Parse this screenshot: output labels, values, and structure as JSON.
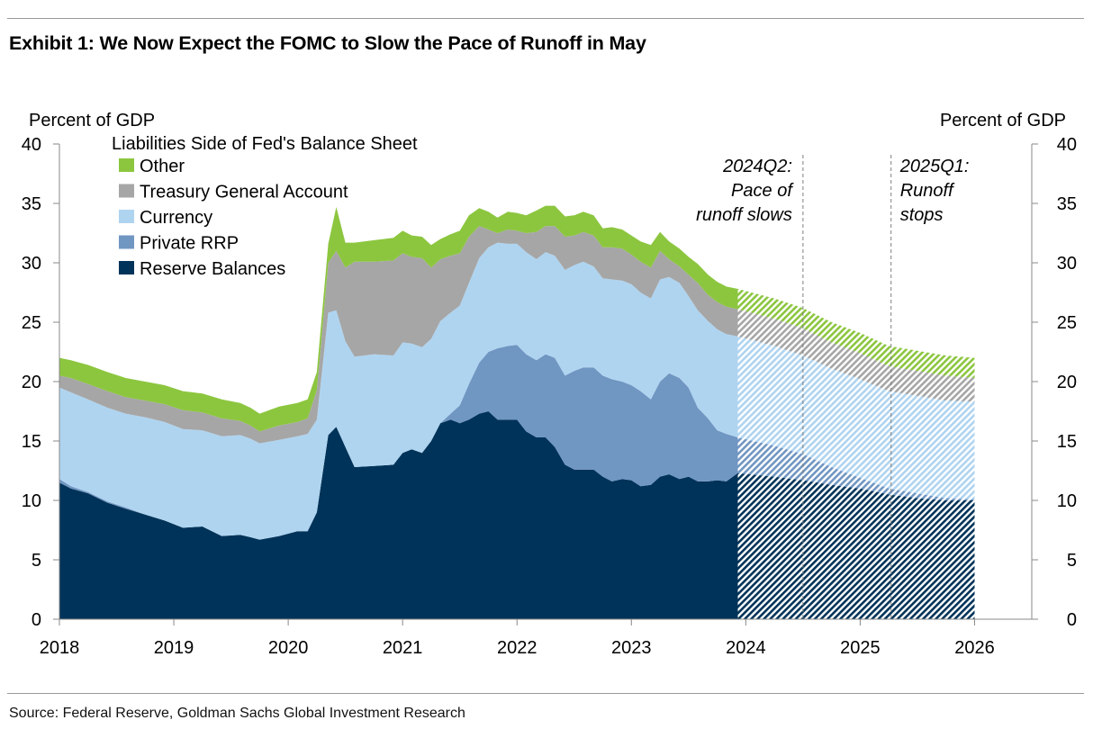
{
  "title": "Exhibit 1: We Now Expect the FOMC to Slow the Pace of Runoff in May",
  "source": "Source: Federal Reserve, Goldman Sachs Global Investment Research",
  "colors": {
    "reserve_balances": "#003359",
    "private_rrp": "#7096c2",
    "currency": "#afd4f0",
    "tga": "#a6a6a6",
    "other": "#8cc63f",
    "grid": "#888888"
  },
  "chart_data": {
    "type": "area",
    "stacked": true,
    "legend_title": "Liabilities Side of Fed's Balance Sheet",
    "legend_position": "top-left",
    "ylabel_left": "Percent of GDP",
    "ylabel_right": "Percent of GDP",
    "ylim": [
      0,
      40
    ],
    "yticks": [
      0,
      5,
      10,
      15,
      20,
      25,
      30,
      35,
      40
    ],
    "xlim": [
      2018,
      2026.5
    ],
    "xticks": [
      "2018",
      "2019",
      "2020",
      "2021",
      "2022",
      "2023",
      "2024",
      "2025",
      "2026"
    ],
    "grid": false,
    "forecast_start": 2023.93,
    "forecast_style": "hatched",
    "annotations": [
      {
        "lines": [
          "2024Q2:",
          "Pace of",
          "runoff slows"
        ],
        "x": 2024.5
      },
      {
        "lines": [
          "2025Q1:",
          "Runoff",
          "stops"
        ],
        "x": 2025.27
      }
    ],
    "x": [
      2018.0,
      2018.1,
      2018.25,
      2018.42,
      2018.58,
      2018.75,
      2018.92,
      2019.08,
      2019.25,
      2019.42,
      2019.58,
      2019.67,
      2019.75,
      2019.92,
      2020.08,
      2020.17,
      2020.25,
      2020.35,
      2020.42,
      2020.5,
      2020.58,
      2020.75,
      2020.92,
      2021.0,
      2021.08,
      2021.17,
      2021.25,
      2021.33,
      2021.42,
      2021.5,
      2021.58,
      2021.67,
      2021.75,
      2021.83,
      2021.92,
      2022.0,
      2022.08,
      2022.17,
      2022.25,
      2022.33,
      2022.42,
      2022.5,
      2022.58,
      2022.67,
      2022.75,
      2022.83,
      2022.92,
      2023.0,
      2023.08,
      2023.17,
      2023.25,
      2023.33,
      2023.42,
      2023.5,
      2023.58,
      2023.67,
      2023.75,
      2023.83,
      2023.93,
      2024.25,
      2024.5,
      2024.75,
      2025.0,
      2025.25,
      2025.5,
      2025.75,
      2026.0
    ],
    "series": [
      {
        "name": "Reserve Balances",
        "values": [
          11.5,
          11.0,
          10.6,
          9.8,
          9.3,
          8.8,
          8.3,
          7.7,
          7.8,
          7.0,
          7.1,
          6.9,
          6.7,
          7.0,
          7.4,
          7.4,
          9.0,
          15.5,
          16.2,
          14.5,
          12.8,
          12.9,
          13.0,
          14.0,
          14.3,
          14.0,
          15.0,
          16.5,
          16.8,
          16.5,
          16.8,
          17.3,
          17.5,
          16.8,
          16.8,
          16.8,
          15.8,
          15.3,
          15.3,
          14.5,
          13.0,
          12.6,
          12.6,
          12.6,
          12.0,
          11.6,
          11.8,
          11.7,
          11.2,
          11.3,
          12.0,
          12.2,
          11.8,
          12.0,
          11.6,
          11.6,
          11.7,
          11.6,
          12.3,
          12.0,
          11.7,
          11.3,
          11.0,
          10.5,
          10.2,
          10.0,
          10.0
        ]
      },
      {
        "name": "Private RRP",
        "values": [
          0.3,
          0.2,
          0.1,
          0.1,
          0.1,
          0.0,
          0.0,
          0.0,
          0.0,
          0.0,
          0.0,
          0.0,
          0.0,
          0.0,
          0.0,
          0.0,
          0.0,
          0.0,
          0.0,
          0.0,
          0.0,
          0.0,
          0.0,
          0.0,
          0.0,
          0.0,
          0.0,
          0.0,
          0.5,
          1.5,
          3.0,
          4.3,
          5.0,
          6.0,
          6.2,
          6.3,
          6.5,
          6.5,
          7.0,
          7.5,
          7.5,
          8.3,
          8.6,
          8.6,
          8.5,
          8.6,
          8.2,
          8.0,
          8.0,
          7.2,
          8.0,
          8.5,
          8.5,
          7.5,
          6.2,
          5.3,
          4.2,
          4.0,
          3.0,
          2.6,
          2.2,
          1.5,
          0.9,
          0.5,
          0.4,
          0.2,
          0.1
        ]
      },
      {
        "name": "Currency",
        "values": [
          7.7,
          7.9,
          7.8,
          7.9,
          7.9,
          8.2,
          8.3,
          8.3,
          8.1,
          8.4,
          8.4,
          8.3,
          8.1,
          8.1,
          8.0,
          8.2,
          7.8,
          10.3,
          9.8,
          8.9,
          9.3,
          9.4,
          9.2,
          9.3,
          8.9,
          8.9,
          8.6,
          8.6,
          8.5,
          8.4,
          8.5,
          8.8,
          8.8,
          8.9,
          8.6,
          8.5,
          8.6,
          8.5,
          8.6,
          8.6,
          8.9,
          8.9,
          8.9,
          8.5,
          8.2,
          8.4,
          8.5,
          8.5,
          8.3,
          8.5,
          8.6,
          8.1,
          8.0,
          7.7,
          8.2,
          8.2,
          8.5,
          8.4,
          8.5,
          8.4,
          8.3,
          8.3,
          8.3,
          8.2,
          8.2,
          8.2,
          8.2
        ]
      },
      {
        "name": "Treasury General Account",
        "values": [
          1.0,
          1.2,
          1.3,
          1.4,
          1.4,
          1.4,
          1.5,
          1.6,
          1.5,
          1.5,
          1.2,
          1.1,
          1.0,
          1.2,
          1.2,
          1.3,
          2.5,
          4.2,
          5.0,
          6.2,
          8.0,
          7.8,
          8.0,
          7.5,
          7.3,
          7.5,
          6.0,
          5.2,
          4.8,
          4.4,
          3.9,
          2.7,
          1.5,
          0.8,
          1.2,
          1.1,
          1.6,
          2.3,
          2.2,
          2.5,
          2.8,
          2.5,
          2.5,
          2.6,
          2.6,
          2.7,
          2.7,
          2.5,
          2.6,
          2.6,
          2.4,
          1.5,
          1.4,
          1.8,
          2.3,
          2.2,
          2.3,
          2.3,
          2.3,
          2.3,
          2.3,
          2.2,
          2.2,
          2.1,
          2.1,
          2.1,
          2.0
        ]
      },
      {
        "name": "Other",
        "values": [
          1.5,
          1.5,
          1.6,
          1.6,
          1.6,
          1.6,
          1.6,
          1.6,
          1.6,
          1.6,
          1.5,
          1.5,
          1.5,
          1.6,
          1.6,
          1.6,
          1.5,
          1.6,
          3.7,
          2.1,
          1.6,
          1.8,
          1.9,
          1.9,
          1.8,
          1.8,
          1.9,
          1.7,
          1.8,
          1.9,
          1.8,
          1.5,
          1.5,
          1.3,
          1.5,
          1.5,
          1.5,
          1.8,
          1.7,
          1.7,
          1.7,
          1.7,
          1.7,
          1.7,
          1.6,
          1.7,
          1.6,
          1.6,
          1.7,
          1.9,
          1.6,
          1.5,
          1.5,
          1.5,
          1.6,
          1.7,
          1.7,
          1.7,
          1.7,
          1.7,
          1.7,
          1.7,
          1.7,
          1.7,
          1.7,
          1.7,
          1.7
        ]
      }
    ]
  }
}
